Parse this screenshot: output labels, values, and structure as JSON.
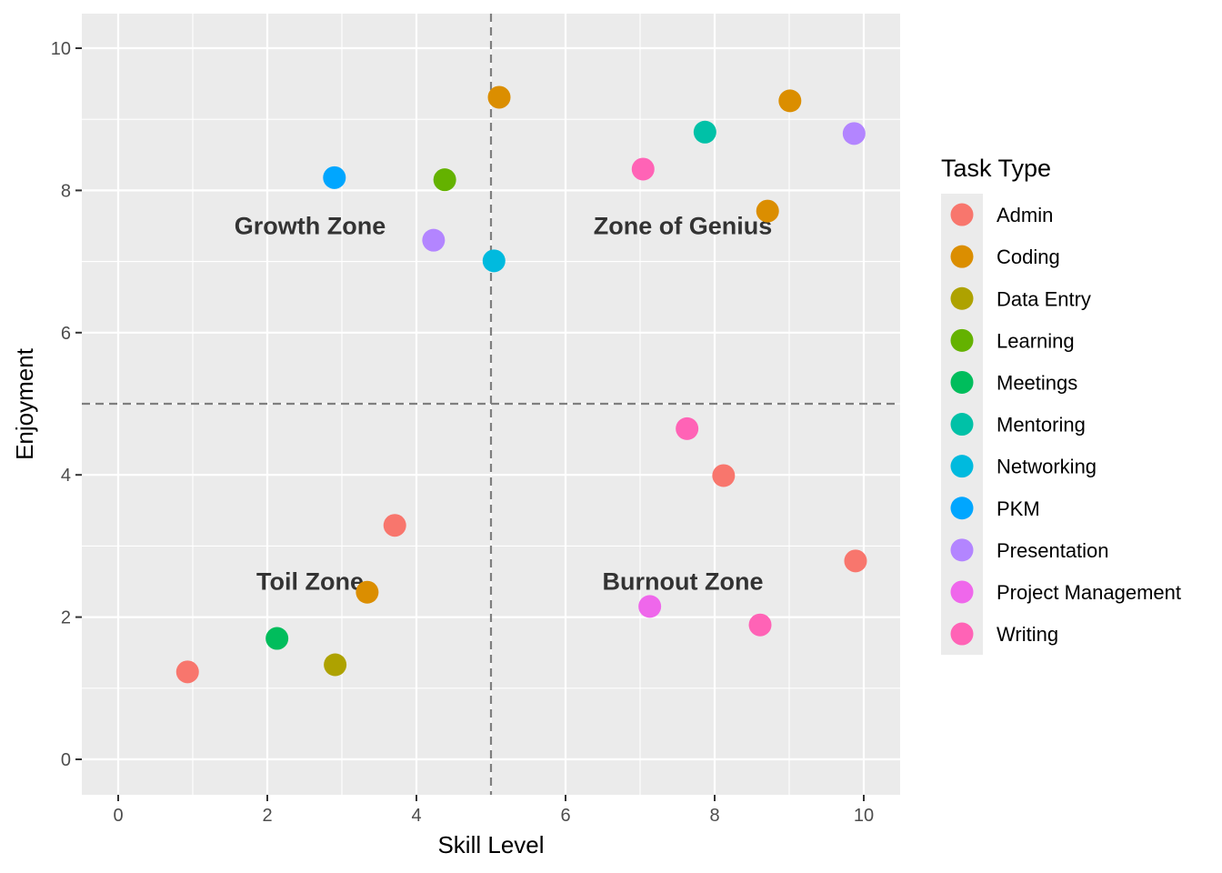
{
  "chart_data": {
    "type": "scatter",
    "title": "",
    "xlabel": "Skill Level",
    "ylabel": "Enjoyment",
    "xlim": [
      -0.5,
      10.5
    ],
    "ylim": [
      -0.5,
      10.5
    ],
    "x_ticks": [
      0,
      2,
      4,
      6,
      8,
      10
    ],
    "y_ticks": [
      0,
      2,
      4,
      6,
      8,
      10
    ],
    "grid": true,
    "reference_lines": {
      "vertical_x": 5,
      "horizontal_y": 5,
      "style": "dashed"
    },
    "annotations": [
      {
        "text": "Growth Zone",
        "x": 2.5,
        "y": 7.5
      },
      {
        "text": "Zone of Genius",
        "x": 7.5,
        "y": 7.5
      },
      {
        "text": "Toil Zone",
        "x": 2.5,
        "y": 2.5
      },
      {
        "text": "Burnout Zone",
        "x": 7.5,
        "y": 2.5
      }
    ],
    "legend": {
      "title": "Task Type",
      "placement": "right",
      "entries": [
        {
          "name": "Admin",
          "color": "#F8766D"
        },
        {
          "name": "Coding",
          "color": "#DB8E00"
        },
        {
          "name": "Data Entry",
          "color": "#AEA200"
        },
        {
          "name": "Learning",
          "color": "#64B200"
        },
        {
          "name": "Meetings",
          "color": "#00BD5C"
        },
        {
          "name": "Mentoring",
          "color": "#00C1A7"
        },
        {
          "name": "Networking",
          "color": "#00BADE"
        },
        {
          "name": "PKM",
          "color": "#00A6FF"
        },
        {
          "name": "Presentation",
          "color": "#B385FF"
        },
        {
          "name": "Project Management",
          "color": "#EF67EB"
        },
        {
          "name": "Writing",
          "color": "#FF63B6"
        }
      ]
    },
    "series": [
      {
        "name": "Admin",
        "points": [
          [
            0.93,
            1.23
          ],
          [
            3.71,
            3.29
          ],
          [
            8.12,
            3.99
          ],
          [
            9.89,
            2.79
          ]
        ]
      },
      {
        "name": "Coding",
        "points": [
          [
            5.11,
            9.31
          ],
          [
            9.01,
            9.26
          ],
          [
            8.71,
            7.71
          ],
          [
            3.34,
            2.35
          ]
        ]
      },
      {
        "name": "Data Entry",
        "points": [
          [
            2.91,
            1.33
          ]
        ]
      },
      {
        "name": "Learning",
        "points": [
          [
            4.38,
            8.15
          ]
        ]
      },
      {
        "name": "Meetings",
        "points": [
          [
            2.13,
            1.7
          ]
        ]
      },
      {
        "name": "Mentoring",
        "points": [
          [
            7.87,
            8.82
          ]
        ]
      },
      {
        "name": "Networking",
        "points": [
          [
            5.04,
            7.01
          ]
        ]
      },
      {
        "name": "PKM",
        "points": [
          [
            2.9,
            8.18
          ]
        ]
      },
      {
        "name": "Presentation",
        "points": [
          [
            4.23,
            7.3
          ],
          [
            9.87,
            8.8
          ]
        ]
      },
      {
        "name": "Project Management",
        "points": [
          [
            7.13,
            2.15
          ]
        ]
      },
      {
        "name": "Writing",
        "points": [
          [
            7.04,
            8.3
          ],
          [
            7.63,
            4.65
          ],
          [
            8.61,
            1.89
          ]
        ]
      }
    ]
  }
}
